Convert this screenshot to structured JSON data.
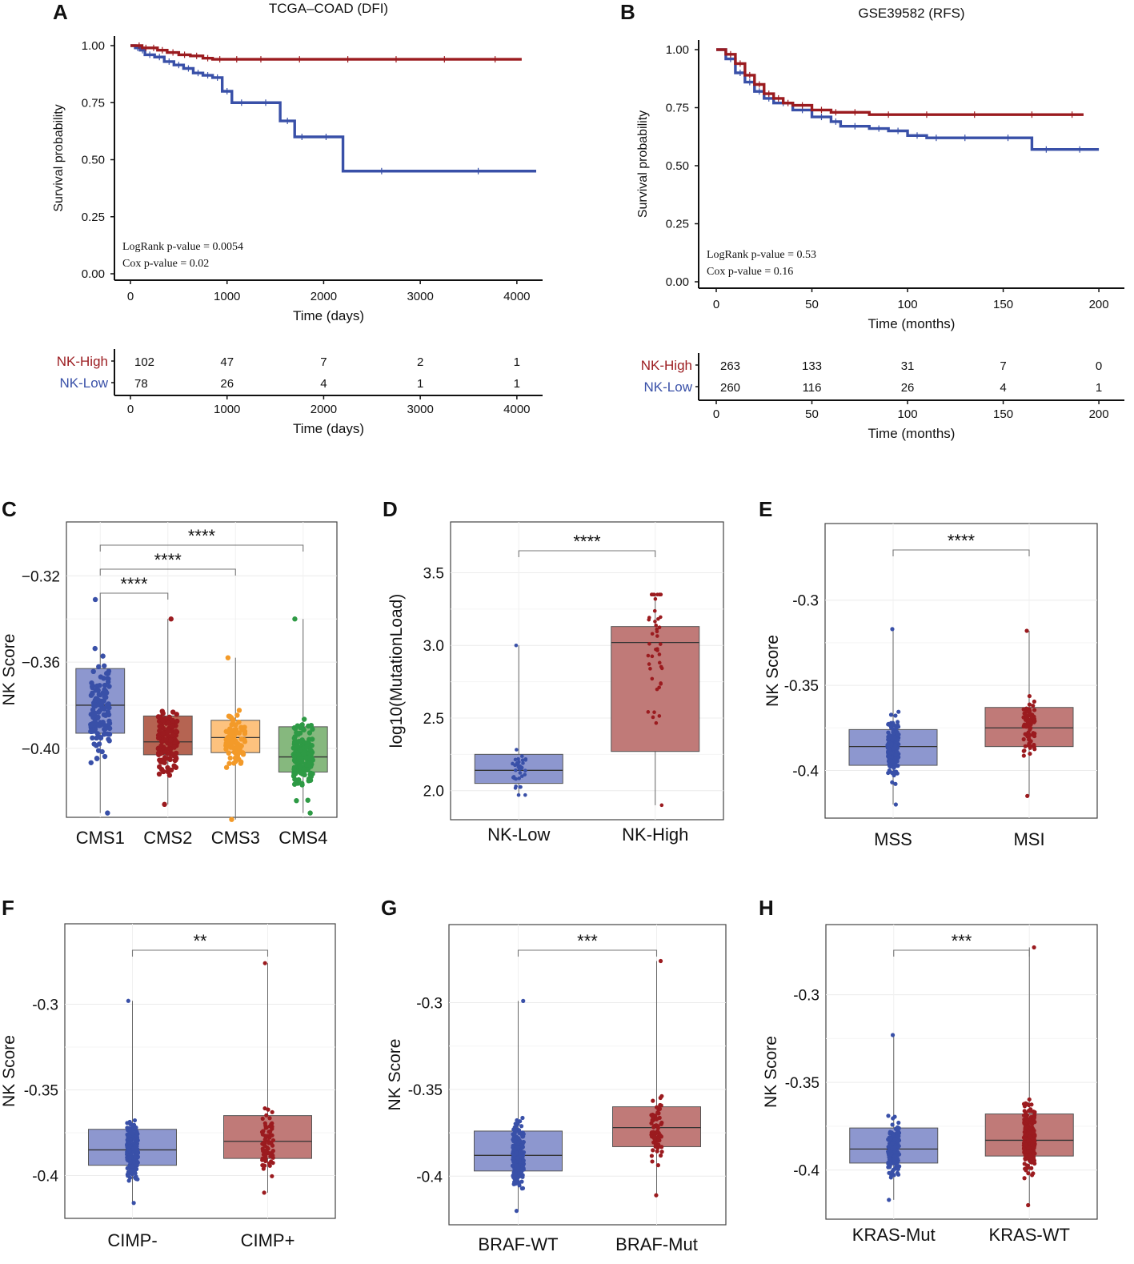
{
  "colors": {
    "high": "#9b1b1f",
    "low": "#3950a8",
    "cms3": "#f39a29",
    "cms4": "#2e9a45",
    "box_low": "#8d97cf",
    "box_high": "#c07a78",
    "box_cms2": "#b56452",
    "box_cms3": "#fdc27e",
    "box_cms4": "#86b87e"
  },
  "chart_data": [
    {
      "panel": "A",
      "type": "line",
      "title": "TCGA–COAD (DFI)",
      "xlabel": "Time (days)",
      "ylabel": "Survival probability",
      "xlim": [
        0,
        4200
      ],
      "ylim": [
        0,
        1
      ],
      "xticks": [
        "0",
        "1000",
        "2000",
        "3000",
        "4000"
      ],
      "yticks": [
        "0.00",
        "0.25",
        "0.50",
        "0.75",
        "1.00"
      ],
      "annotations": [
        "LogRank p-value = 0.0054",
        "Cox p-value = 0.02"
      ],
      "series": [
        {
          "name": "NK-High",
          "x": [
            0,
            60,
            120,
            200,
            280,
            380,
            500,
            620,
            750,
            850,
            1000,
            1200,
            1500,
            2000,
            2500,
            3000,
            3500,
            4050
          ],
          "y": [
            1.0,
            1.0,
            0.99,
            0.99,
            0.98,
            0.97,
            0.96,
            0.955,
            0.945,
            0.94,
            0.94,
            0.94,
            0.94,
            0.94,
            0.94,
            0.94,
            0.94,
            0.94
          ]
        },
        {
          "name": "NK-Low",
          "x": [
            0,
            50,
            100,
            150,
            250,
            350,
            450,
            550,
            650,
            750,
            850,
            950,
            1050,
            1250,
            1550,
            1700,
            1850,
            2200,
            3000,
            4200
          ],
          "y": [
            1.0,
            0.99,
            0.98,
            0.96,
            0.95,
            0.93,
            0.915,
            0.9,
            0.88,
            0.87,
            0.86,
            0.8,
            0.75,
            0.75,
            0.67,
            0.6,
            0.6,
            0.45,
            0.45,
            0.45
          ]
        }
      ],
      "risk_table": {
        "xlabel": "Time (days)",
        "ticks": [
          "0",
          "1000",
          "2000",
          "3000",
          "4000"
        ],
        "rows": [
          {
            "label": "NK-High",
            "values": [
              "102",
              "47",
              "7",
              "2",
              "1"
            ]
          },
          {
            "label": "NK-Low",
            "values": [
              "78",
              "26",
              "4",
              "1",
              "1"
            ]
          }
        ]
      }
    },
    {
      "panel": "B",
      "type": "line",
      "title": "GSE39582 (RFS)",
      "xlabel": "Time (months)",
      "ylabel": "Survival probability",
      "xlim": [
        0,
        210
      ],
      "ylim": [
        0,
        1
      ],
      "xticks": [
        "0",
        "50",
        "100",
        "150",
        "200"
      ],
      "yticks": [
        "0.00",
        "0.25",
        "0.50",
        "0.75",
        "1.00"
      ],
      "annotations": [
        "LogRank p-value = 0.53",
        "Cox p-value = 0.16"
      ],
      "series": [
        {
          "name": "NK-High",
          "x": [
            0,
            5,
            10,
            15,
            20,
            25,
            30,
            35,
            40,
            50,
            60,
            65,
            80,
            100,
            120,
            150,
            180,
            192
          ],
          "y": [
            1.0,
            0.98,
            0.94,
            0.89,
            0.85,
            0.81,
            0.79,
            0.77,
            0.76,
            0.74,
            0.73,
            0.73,
            0.72,
            0.72,
            0.72,
            0.72,
            0.72,
            0.72
          ]
        },
        {
          "name": "NK-Low",
          "x": [
            0,
            5,
            10,
            15,
            20,
            25,
            30,
            40,
            50,
            60,
            65,
            80,
            90,
            100,
            110,
            120,
            140,
            165,
            180,
            200
          ],
          "y": [
            1.0,
            0.96,
            0.9,
            0.86,
            0.82,
            0.79,
            0.77,
            0.74,
            0.71,
            0.69,
            0.67,
            0.66,
            0.65,
            0.63,
            0.62,
            0.62,
            0.62,
            0.57,
            0.57,
            0.57
          ]
        }
      ],
      "risk_table": {
        "xlabel": "Time (months)",
        "ticks": [
          "0",
          "50",
          "100",
          "150",
          "200"
        ],
        "rows": [
          {
            "label": "NK-High",
            "values": [
              "263",
              "133",
              "31",
              "7",
              "0"
            ]
          },
          {
            "label": "NK-Low",
            "values": [
              "260",
              "116",
              "26",
              "4",
              "1"
            ]
          }
        ]
      }
    },
    {
      "panel": "C",
      "type": "box",
      "ylabel": "NK Score",
      "ylim": [
        -0.432,
        -0.295
      ],
      "yticks": [
        -0.32,
        -0.36,
        -0.4
      ],
      "ytick_labels": [
        "−0.32",
        "−0.36",
        "−0.40"
      ],
      "categories": [
        "CMS1",
        "CMS2",
        "CMS3",
        "CMS4"
      ],
      "boxes": [
        {
          "q1": -0.393,
          "median": -0.38,
          "q3": -0.363,
          "min": -0.43,
          "max": -0.331
        },
        {
          "q1": -0.403,
          "median": -0.397,
          "q3": -0.385,
          "min": -0.426,
          "max": -0.34
        },
        {
          "q1": -0.402,
          "median": -0.395,
          "q3": -0.387,
          "min": -0.433,
          "max": -0.358
        },
        {
          "q1": -0.411,
          "median": -0.404,
          "q3": -0.39,
          "min": -0.43,
          "max": -0.34
        }
      ],
      "comparisons": [
        {
          "a": 0,
          "b": 1,
          "label": "****"
        },
        {
          "a": 0,
          "b": 2,
          "label": "****"
        },
        {
          "a": 0,
          "b": 3,
          "label": "****"
        }
      ]
    },
    {
      "panel": "D",
      "type": "box",
      "ylabel": "log10(MutationLoad)",
      "ylim": [
        1.8,
        3.85
      ],
      "yticks": [
        2.0,
        2.5,
        3.0,
        3.5
      ],
      "ytick_labels": [
        "2.0",
        "2.5",
        "3.0",
        "3.5"
      ],
      "categories": [
        "NK-Low",
        "NK-High"
      ],
      "boxes": [
        {
          "q1": 2.05,
          "median": 2.14,
          "q3": 2.25,
          "min": 1.97,
          "max": 3.0
        },
        {
          "q1": 2.27,
          "median": 3.02,
          "q3": 3.13,
          "min": 1.9,
          "max": 3.35
        }
      ],
      "comparisons": [
        {
          "a": 0,
          "b": 1,
          "label": "****"
        }
      ]
    },
    {
      "panel": "E",
      "type": "box",
      "ylabel": "NK Score",
      "ylim": [
        -0.428,
        -0.255
      ],
      "yticks": [
        -0.3,
        -0.35,
        -0.4
      ],
      "ytick_labels": [
        "-0.3",
        "-0.35",
        "-0.4"
      ],
      "categories": [
        "MSS",
        "MSI"
      ],
      "boxes": [
        {
          "q1": -0.397,
          "median": -0.386,
          "q3": -0.376,
          "min": -0.42,
          "max": -0.317
        },
        {
          "q1": -0.386,
          "median": -0.375,
          "q3": -0.363,
          "min": -0.415,
          "max": -0.318
        }
      ],
      "comparisons": [
        {
          "a": 0,
          "b": 1,
          "label": "****"
        }
      ]
    },
    {
      "panel": "F",
      "type": "box",
      "ylabel": "NK Score",
      "ylim": [
        -0.425,
        -0.253
      ],
      "yticks": [
        -0.3,
        -0.35,
        -0.4
      ],
      "ytick_labels": [
        "-0.3",
        "-0.35",
        "-0.4"
      ],
      "categories": [
        "CIMP-",
        "CIMP+"
      ],
      "boxes": [
        {
          "q1": -0.394,
          "median": -0.385,
          "q3": -0.373,
          "min": -0.416,
          "max": -0.298
        },
        {
          "q1": -0.39,
          "median": -0.38,
          "q3": -0.365,
          "min": -0.41,
          "max": -0.276
        }
      ],
      "comparisons": [
        {
          "a": 0,
          "b": 1,
          "label": "**"
        }
      ]
    },
    {
      "panel": "G",
      "type": "box",
      "ylabel": "NK Score",
      "ylim": [
        -0.428,
        -0.255
      ],
      "yticks": [
        -0.3,
        -0.35,
        -0.4
      ],
      "ytick_labels": [
        "-0.3",
        "-0.35",
        "-0.4"
      ],
      "categories": [
        "BRAF-WT",
        "BRAF-Mut"
      ],
      "boxes": [
        {
          "q1": -0.397,
          "median": -0.388,
          "q3": -0.374,
          "min": -0.42,
          "max": -0.299
        },
        {
          "q1": -0.383,
          "median": -0.372,
          "q3": -0.36,
          "min": -0.411,
          "max": -0.276
        }
      ],
      "comparisons": [
        {
          "a": 0,
          "b": 1,
          "label": "***"
        }
      ]
    },
    {
      "panel": "H",
      "type": "box",
      "ylabel": "NK Score",
      "ylim": [
        -0.428,
        -0.26
      ],
      "yticks": [
        -0.3,
        -0.35,
        -0.4
      ],
      "ytick_labels": [
        "-0.3",
        "-0.35",
        "-0.4"
      ],
      "categories": [
        "KRAS-Mut",
        "KRAS-WT"
      ],
      "boxes": [
        {
          "q1": -0.396,
          "median": -0.388,
          "q3": -0.376,
          "min": -0.417,
          "max": -0.323
        },
        {
          "q1": -0.392,
          "median": -0.383,
          "q3": -0.368,
          "min": -0.42,
          "max": -0.273
        }
      ],
      "comparisons": [
        {
          "a": 0,
          "b": 1,
          "label": "***"
        }
      ]
    }
  ]
}
